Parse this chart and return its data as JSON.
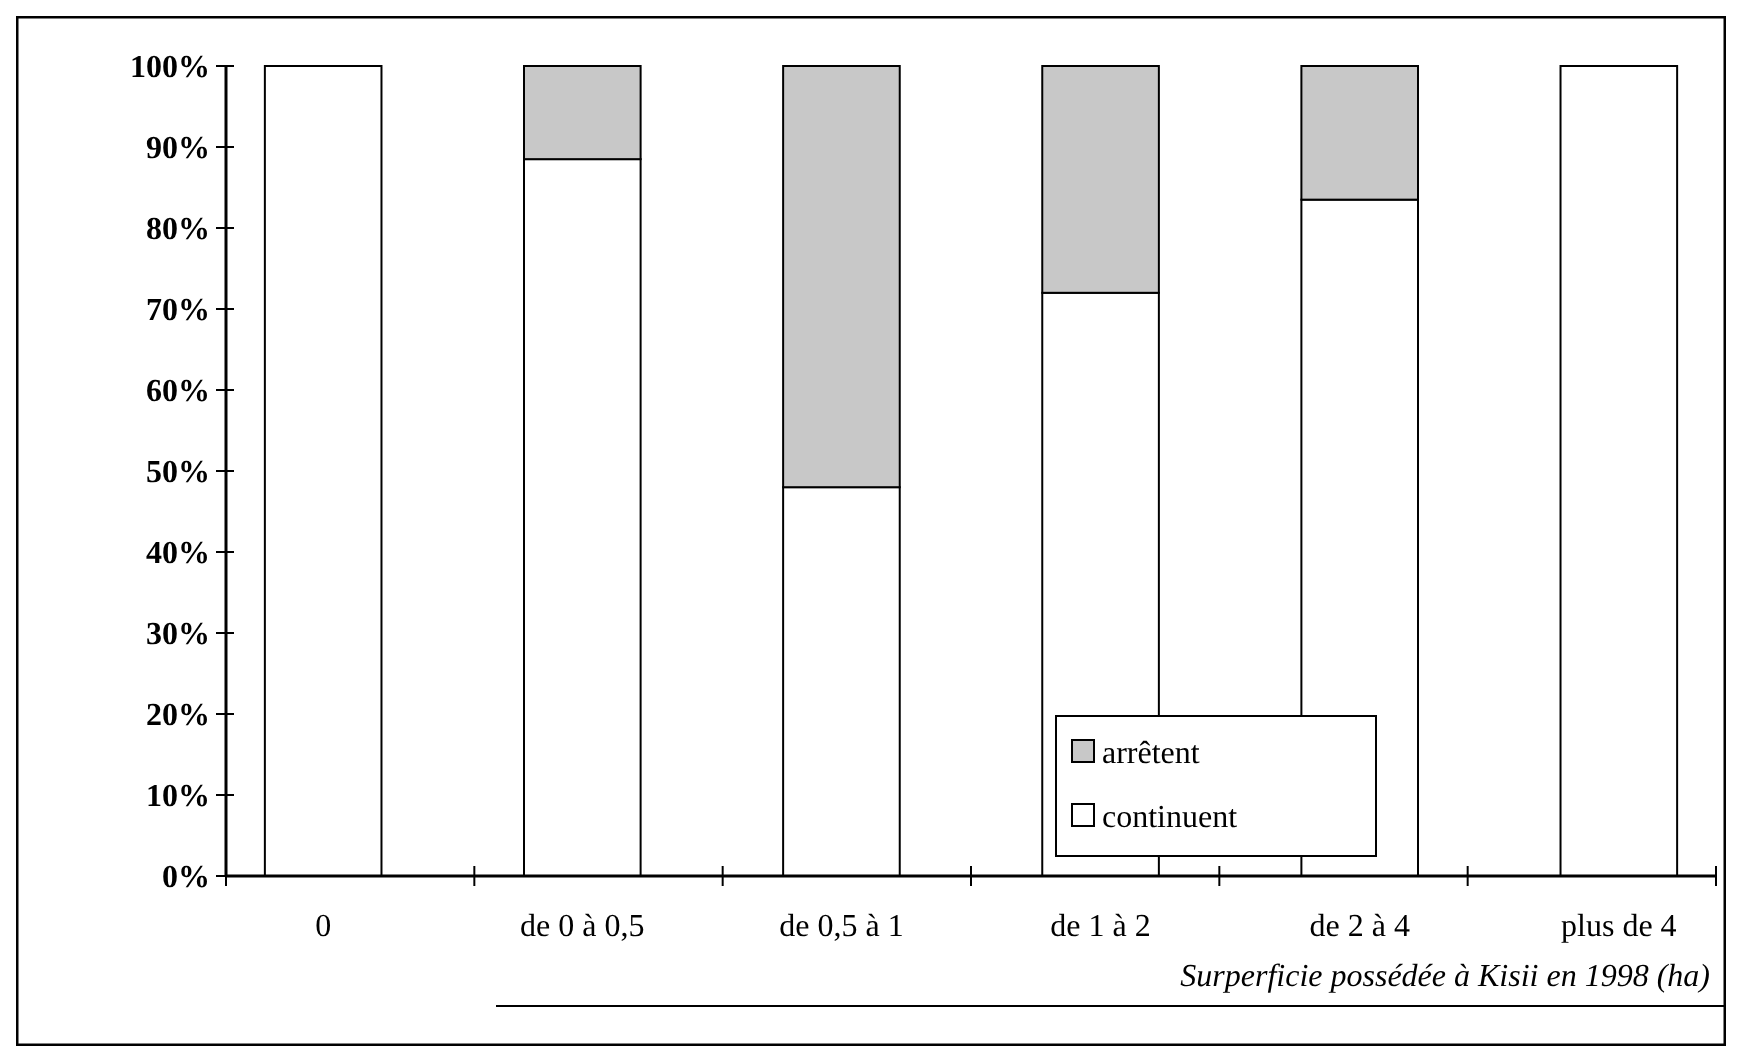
{
  "chart_data": {
    "type": "bar",
    "stacked": true,
    "xlabel": "Surperficie possédée à Kisii en 1998 (ha)",
    "categories": [
      "0",
      "de 0 à 0,5",
      "de 0,5 à 1",
      "de 1 à 2",
      "de 2 à 4",
      "plus de 4"
    ],
    "series": [
      {
        "name": "continuent",
        "color": "#ffffff",
        "values": [
          100,
          88.5,
          48,
          72,
          83.5,
          100
        ]
      },
      {
        "name": "arrêtent",
        "color": "#c8c8c8",
        "values": [
          0,
          11.5,
          52,
          28,
          16.5,
          0
        ]
      }
    ],
    "ylim": [
      0,
      100
    ],
    "yticks": [
      {
        "value": 0,
        "label": "0%"
      },
      {
        "value": 10,
        "label": "10%"
      },
      {
        "value": 20,
        "label": "20%"
      },
      {
        "value": 30,
        "label": "30%"
      },
      {
        "value": 40,
        "label": "40%"
      },
      {
        "value": 50,
        "label": "50%"
      },
      {
        "value": 60,
        "label": "60%"
      },
      {
        "value": 70,
        "label": "70%"
      },
      {
        "value": 80,
        "label": "80%"
      },
      {
        "value": 90,
        "label": "90%"
      },
      {
        "value": 100,
        "label": "100%"
      }
    ],
    "grid": false,
    "legend": "bottom right"
  }
}
